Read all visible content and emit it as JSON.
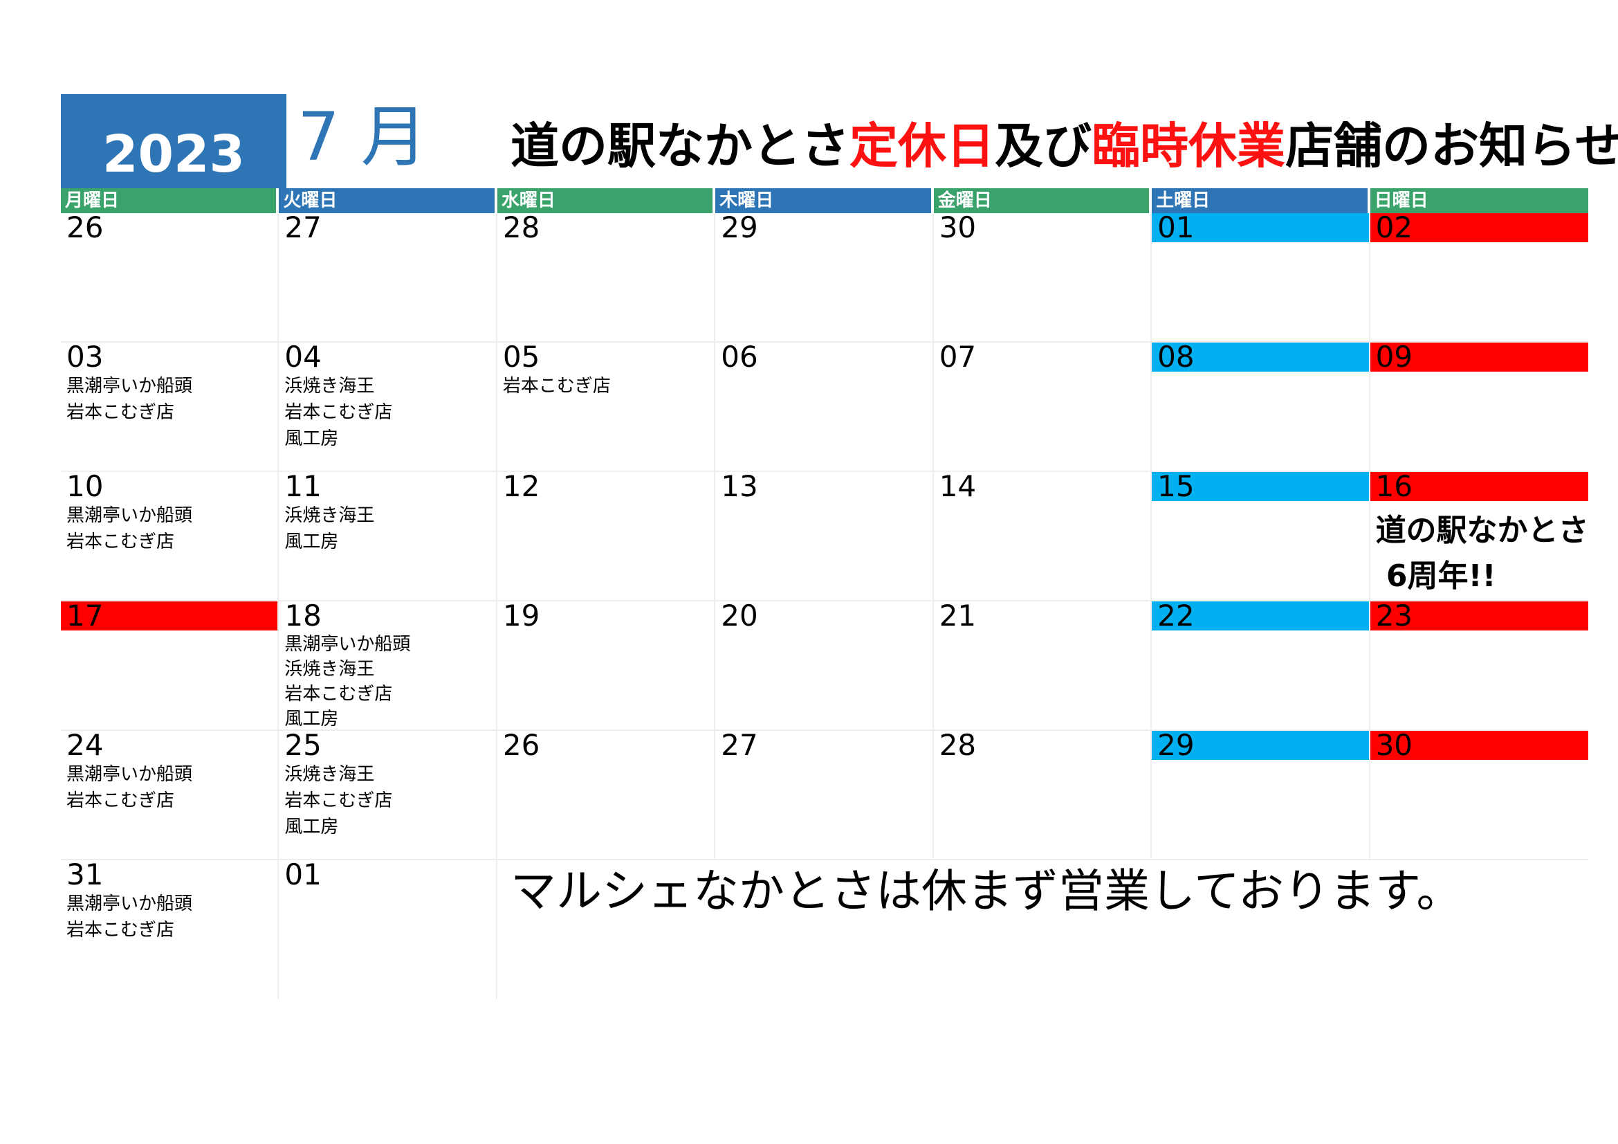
{
  "header": {
    "year": "2023",
    "month": "7 月",
    "title_parts": [
      {
        "text": "道の駅なかとさ",
        "red": false
      },
      {
        "text": "定休日",
        "red": true
      },
      {
        "text": "及び",
        "red": false
      },
      {
        "text": "臨時休業",
        "red": true
      },
      {
        "text": "店舗のお知らせ",
        "red": false
      }
    ]
  },
  "colors": {
    "year_bg": "#2e75b6",
    "dow_green": "#3aa36b",
    "dow_blue": "#2e75b6",
    "saturday": "#00b0f0",
    "sunday": "#ff0000",
    "title_red": "#ff1111"
  },
  "weekdays": [
    {
      "label": "月曜日",
      "color": "#3aa36b"
    },
    {
      "label": "火曜日",
      "color": "#2e75b6"
    },
    {
      "label": "水曜日",
      "color": "#3aa36b"
    },
    {
      "label": "木曜日",
      "color": "#2e75b6"
    },
    {
      "label": "金曜日",
      "color": "#3aa36b"
    },
    {
      "label": "土曜日",
      "color": "#2e75b6"
    },
    {
      "label": "日曜日",
      "color": "#3aa36b"
    }
  ],
  "weeks": [
    [
      {
        "day": "26",
        "kind": "",
        "shops": []
      },
      {
        "day": "27",
        "kind": "",
        "shops": []
      },
      {
        "day": "28",
        "kind": "",
        "shops": []
      },
      {
        "day": "29",
        "kind": "",
        "shops": []
      },
      {
        "day": "30",
        "kind": "",
        "shops": []
      },
      {
        "day": "01",
        "kind": "sat",
        "shops": []
      },
      {
        "day": "02",
        "kind": "sun",
        "shops": []
      }
    ],
    [
      {
        "day": "03",
        "kind": "",
        "shops": [
          "黒潮亭いか船頭",
          "岩本こむぎ店"
        ]
      },
      {
        "day": "04",
        "kind": "",
        "shops": [
          "浜焼き海王",
          "岩本こむぎ店",
          "風工房"
        ]
      },
      {
        "day": "05",
        "kind": "",
        "shops": [
          "岩本こむぎ店"
        ]
      },
      {
        "day": "06",
        "kind": "",
        "shops": []
      },
      {
        "day": "07",
        "kind": "",
        "shops": []
      },
      {
        "day": "08",
        "kind": "sat",
        "shops": []
      },
      {
        "day": "09",
        "kind": "sun",
        "shops": []
      }
    ],
    [
      {
        "day": "10",
        "kind": "",
        "shops": [
          "黒潮亭いか船頭",
          "岩本こむぎ店"
        ]
      },
      {
        "day": "11",
        "kind": "",
        "shops": [
          "浜焼き海王",
          "風工房"
        ]
      },
      {
        "day": "12",
        "kind": "",
        "shops": []
      },
      {
        "day": "13",
        "kind": "",
        "shops": []
      },
      {
        "day": "14",
        "kind": "",
        "shops": []
      },
      {
        "day": "15",
        "kind": "sat",
        "shops": []
      },
      {
        "day": "16",
        "kind": "sun",
        "shops": [],
        "note": [
          "道の駅なかとさ",
          " 6周年!!"
        ]
      }
    ],
    [
      {
        "day": "17",
        "kind": "sun",
        "shops": []
      },
      {
        "day": "18",
        "kind": "",
        "shops": [
          "黒潮亭いか船頭",
          "浜焼き海王",
          "岩本こむぎ店",
          "風工房"
        ],
        "compact": true
      },
      {
        "day": "19",
        "kind": "",
        "shops": []
      },
      {
        "day": "20",
        "kind": "",
        "shops": []
      },
      {
        "day": "21",
        "kind": "",
        "shops": []
      },
      {
        "day": "22",
        "kind": "sat",
        "shops": []
      },
      {
        "day": "23",
        "kind": "sun",
        "shops": []
      }
    ],
    [
      {
        "day": "24",
        "kind": "",
        "shops": [
          "黒潮亭いか船頭",
          "岩本こむぎ店"
        ]
      },
      {
        "day": "25",
        "kind": "",
        "shops": [
          "浜焼き海王",
          "岩本こむぎ店",
          "風工房"
        ]
      },
      {
        "day": "26",
        "kind": "",
        "shops": []
      },
      {
        "day": "27",
        "kind": "",
        "shops": []
      },
      {
        "day": "28",
        "kind": "",
        "shops": []
      },
      {
        "day": "29",
        "kind": "sat",
        "shops": []
      },
      {
        "day": "30",
        "kind": "sun",
        "shops": []
      }
    ],
    [
      {
        "day": "31",
        "kind": "",
        "shops": [
          "黒潮亭いか船頭",
          "岩本こむぎ店"
        ]
      },
      {
        "day": "01",
        "kind": "",
        "shops": []
      }
    ]
  ],
  "footer_message": "マルシェなかとさは休まず営業しております。"
}
